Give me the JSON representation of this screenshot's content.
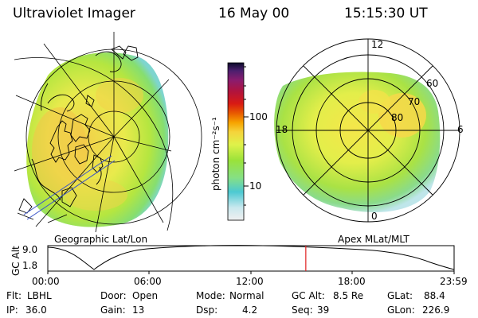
{
  "header": {
    "instrument": "Ultraviolet Imager",
    "date": "16 May 00",
    "time": "15:15:30 UT"
  },
  "geo_panel": {
    "label": "Geographic Lat/Lon"
  },
  "apex_panel": {
    "label": "Apex MLat/MLT",
    "mlt_labels": [
      "12",
      "18",
      "6",
      "0"
    ],
    "lat_labels": [
      "60",
      "70",
      "80"
    ]
  },
  "colorbar": {
    "unit_label": "photon cm⁻²s⁻¹",
    "tick_labels": [
      "100",
      "10"
    ],
    "scale": "log",
    "colors": [
      "#f0f0f0",
      "#c9e8ee",
      "#4cc9d2",
      "#86e084",
      "#9ae23a",
      "#dff24a",
      "#f5d43c",
      "#f7a400",
      "#e85a00",
      "#d91a13",
      "#b0133e",
      "#8a1c6e",
      "#4b1f6e",
      "#0b0b2a"
    ]
  },
  "altitude_plot": {
    "ylabel": "GC Alt",
    "ytick_labels": [
      "9.0",
      "1.8"
    ],
    "xtick_labels": [
      "00:00",
      "06:00",
      "12:00",
      "18:00",
      "23:59"
    ],
    "current_time_fraction": 0.635,
    "marker_color": "#e02020"
  },
  "footer": {
    "row1": [
      {
        "key": "Flt:",
        "value": "LBHL"
      },
      {
        "key": "Door:",
        "value": "Open"
      },
      {
        "key": "Mode:",
        "value": "Normal"
      },
      {
        "key": "GC Alt:",
        "value": "8.5 Re"
      },
      {
        "key": "GLat:",
        "value": "88.4"
      }
    ],
    "row2": [
      {
        "key": "IP:",
        "value": "36.0"
      },
      {
        "key": "Gain:",
        "value": "13"
      },
      {
        "key": "Dsp:",
        "value": "4.2"
      },
      {
        "key": "Seq:",
        "value": "39"
      },
      {
        "key": "GLon:",
        "value": "226.9"
      }
    ]
  }
}
